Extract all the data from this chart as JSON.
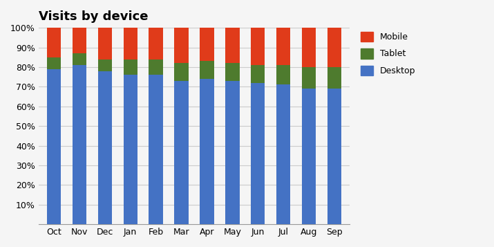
{
  "months": [
    "Oct",
    "Nov",
    "Dec",
    "Jan",
    "Feb",
    "Mar",
    "Apr",
    "May",
    "Jun",
    "Jul",
    "Aug",
    "Sep"
  ],
  "desktop": [
    79,
    81,
    78,
    76,
    76,
    73,
    74,
    73,
    72,
    71,
    69,
    69
  ],
  "tablet": [
    6,
    6,
    6,
    8,
    8,
    9,
    9,
    9,
    9,
    10,
    11,
    11
  ],
  "mobile": [
    15,
    13,
    16,
    16,
    16,
    18,
    17,
    18,
    19,
    19,
    20,
    20
  ],
  "colors": {
    "desktop": "#4472c4",
    "tablet": "#4e7b2e",
    "mobile": "#e03b1a"
  },
  "title": "Visits by device",
  "title_fontsize": 13,
  "title_fontweight": "bold",
  "ytick_values": [
    10,
    20,
    30,
    40,
    50,
    60,
    70,
    80,
    90,
    100
  ],
  "ylim": [
    0,
    100
  ],
  "background_color": "#f5f5f5",
  "plot_bg_color": "#f5f5f5",
  "grid_color": "#cccccc",
  "legend_labels": [
    "Mobile",
    "Tablet",
    "Desktop"
  ],
  "bar_width": 0.55,
  "tick_fontsize": 9,
  "legend_fontsize": 9
}
